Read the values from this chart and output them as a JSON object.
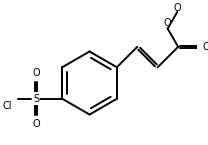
{
  "bg_color": "#ffffff",
  "line_color": "#000000",
  "lw": 1.4,
  "fig_width": 2.08,
  "fig_height": 1.45,
  "dpi": 100,
  "xlim": [
    -1.05,
    1.15
  ],
  "ylim": [
    -0.82,
    0.82
  ]
}
